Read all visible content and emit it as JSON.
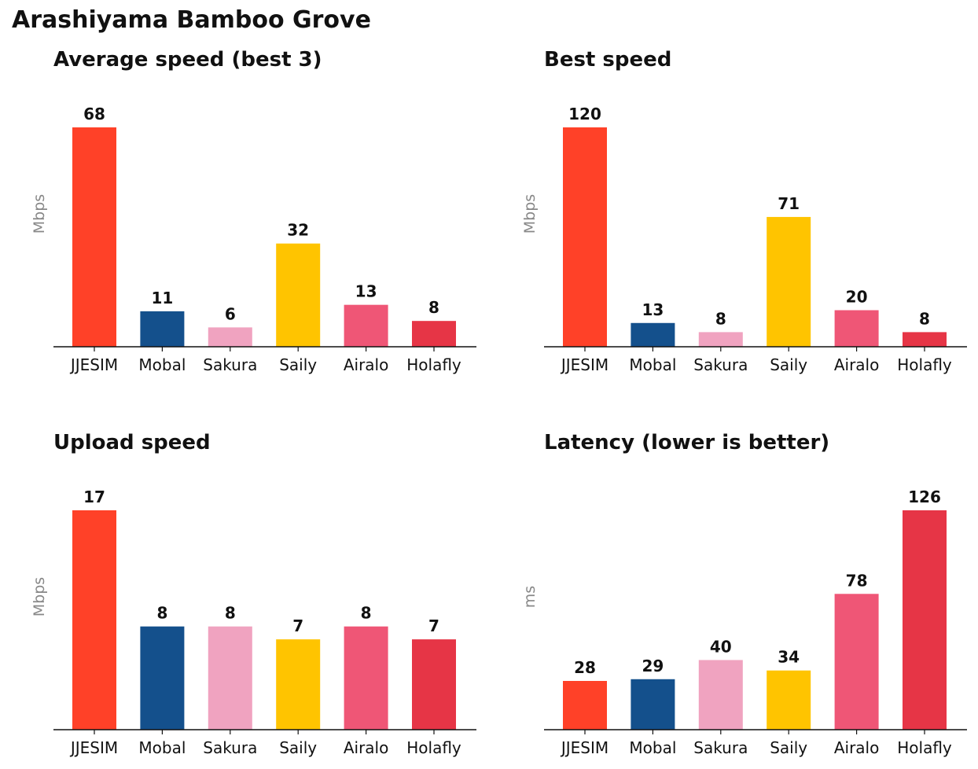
{
  "title": "Arashiyama Bamboo Grove",
  "categories": [
    "JJESIM",
    "Mobal",
    "Sakura",
    "Saily",
    "Airalo",
    "Holafly"
  ],
  "colors": {
    "JJESIM": "#ff4128",
    "Mobal": "#14508c",
    "Sakura": "#f0a3c0",
    "Saily": "#ffc400",
    "Airalo": "#ef5676",
    "Holafly": "#e63546"
  },
  "chart_data": [
    {
      "type": "bar",
      "title": "Average speed (best 3)",
      "ylabel": "Mbps",
      "xlabel": "",
      "categories": [
        "JJESIM",
        "Mobal",
        "Sakura",
        "Saily",
        "Airalo",
        "Holafly"
      ],
      "values": [
        68,
        11,
        6,
        32,
        13,
        8
      ],
      "ylim": [
        0,
        68
      ],
      "grid": false
    },
    {
      "type": "bar",
      "title": "Best speed",
      "ylabel": "Mbps",
      "xlabel": "",
      "categories": [
        "JJESIM",
        "Mobal",
        "Sakura",
        "Saily",
        "Airalo",
        "Holafly"
      ],
      "values": [
        120,
        13,
        8,
        71,
        20,
        8
      ],
      "ylim": [
        0,
        120
      ],
      "grid": false
    },
    {
      "type": "bar",
      "title": "Upload speed",
      "ylabel": "Mbps",
      "xlabel": "",
      "categories": [
        "JJESIM",
        "Mobal",
        "Sakura",
        "Saily",
        "Airalo",
        "Holafly"
      ],
      "values": [
        17,
        8,
        8,
        7,
        8,
        7
      ],
      "ylim": [
        0,
        17
      ],
      "grid": false
    },
    {
      "type": "bar",
      "title": "Latency (lower is better)",
      "ylabel": "ms",
      "xlabel": "",
      "categories": [
        "JJESIM",
        "Mobal",
        "Sakura",
        "Saily",
        "Airalo",
        "Holafly"
      ],
      "values": [
        28,
        29,
        40,
        34,
        78,
        126
      ],
      "ylim": [
        0,
        126
      ],
      "grid": false
    }
  ]
}
